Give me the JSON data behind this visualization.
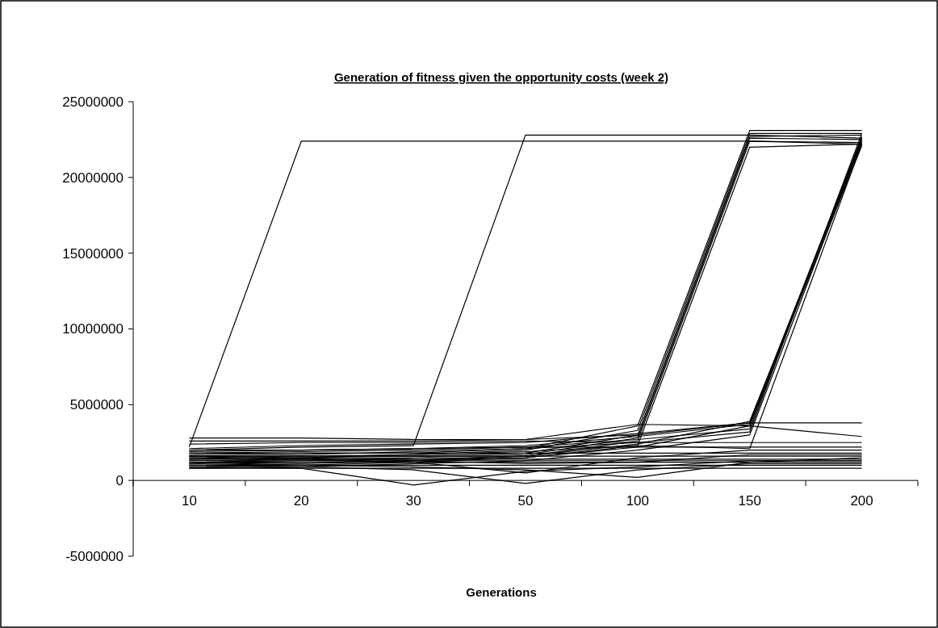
{
  "chart_data": {
    "type": "line",
    "title": "Generation of fitness given the opportunity costs (week 2)",
    "xlabel": "Generations",
    "categories": [
      "10",
      "20",
      "30",
      "50",
      "100",
      "150",
      "200"
    ],
    "ylim": [
      -5000000,
      25000000
    ],
    "yticks": [
      -5000000,
      0,
      5000000,
      10000000,
      15000000,
      20000000,
      25000000
    ],
    "grid": false,
    "marker": "none",
    "line_style": "solid",
    "series": [
      {
        "color": "#000000",
        "values": [
          2200000,
          22400000,
          22400000,
          22400000,
          22400000,
          22400000,
          22200000
        ]
      },
      {
        "color": "#000000",
        "values": [
          2000000,
          2200000,
          2300000,
          22800000,
          22800000,
          22800000,
          22600000
        ]
      },
      {
        "color": "#000000",
        "values": [
          1600000,
          1700000,
          1900000,
          2100000,
          3600000,
          23100000,
          23100000
        ]
      },
      {
        "color": "#000000",
        "values": [
          1500000,
          1600000,
          1700000,
          2000000,
          3300000,
          22900000,
          22900000
        ]
      },
      {
        "color": "#000000",
        "values": [
          1400000,
          1500000,
          1600000,
          1800000,
          3000000,
          22700000,
          22800000
        ]
      },
      {
        "color": "#000000",
        "values": [
          1300000,
          1400000,
          1500000,
          1700000,
          2800000,
          22600000,
          22500000
        ]
      },
      {
        "color": "#000000",
        "values": [
          1200000,
          1300000,
          1400000,
          1600000,
          2600000,
          22400000,
          22300000
        ]
      },
      {
        "color": "#000000",
        "values": [
          1100000,
          1200000,
          1300000,
          1500000,
          2300000,
          22000000,
          22200000
        ]
      },
      {
        "color": "#000000",
        "values": [
          1000000,
          1100000,
          1300000,
          1600000,
          2400000,
          3900000,
          22300000
        ]
      },
      {
        "color": "#000000",
        "values": [
          900000,
          1000000,
          1200000,
          1500000,
          2200000,
          3600000,
          22500000
        ]
      },
      {
        "color": "#000000",
        "values": [
          1800000,
          1900000,
          2000000,
          2200000,
          2700000,
          3400000,
          22700000
        ]
      },
      {
        "color": "#000000",
        "values": [
          1700000,
          1800000,
          1800000,
          2100000,
          2500000,
          3200000,
          22900000
        ]
      },
      {
        "color": "#000000",
        "values": [
          1900000,
          2000000,
          2100000,
          2300000,
          2900000,
          3700000,
          22100000
        ]
      },
      {
        "color": "#000000",
        "values": [
          800000,
          900000,
          1100000,
          1300000,
          2000000,
          3000000,
          22400000
        ]
      },
      {
        "color": "#000000",
        "values": [
          2100000,
          2300000,
          2400000,
          2500000,
          3100000,
          3800000,
          22600000
        ]
      },
      {
        "color": "#000000",
        "values": [
          1600000,
          1500000,
          1700000,
          1900000,
          2300000,
          2100000,
          22200000
        ]
      },
      {
        "color": "#000000",
        "values": [
          2800000,
          2800000,
          2700000,
          2700000,
          3000000,
          3800000,
          3800000
        ]
      },
      {
        "color": "#000000",
        "values": [
          2600000,
          2600000,
          2600000,
          2700000,
          3700000,
          3600000,
          2900000
        ]
      },
      {
        "color": "#000000",
        "values": [
          2400000,
          2500000,
          2500000,
          2600000,
          2500000,
          2500000,
          2500000
        ]
      },
      {
        "color": "#000000",
        "values": [
          2000000,
          2000000,
          2100000,
          2200000,
          2200000,
          2200000,
          2200000
        ]
      },
      {
        "color": "#000000",
        "values": [
          1800000,
          1800000,
          1800000,
          1800000,
          1800000,
          1800000,
          1800000
        ]
      },
      {
        "color": "#000000",
        "values": [
          1600000,
          1600000,
          1600000,
          1600000,
          1600000,
          1600000,
          1600000
        ]
      },
      {
        "color": "#000000",
        "values": [
          1400000,
          1400000,
          1400000,
          1400000,
          1400000,
          1400000,
          1400000
        ]
      },
      {
        "color": "#000000",
        "values": [
          1200000,
          1200000,
          1200000,
          1200000,
          1200000,
          1200000,
          1200000
        ]
      },
      {
        "color": "#000000",
        "values": [
          1000000,
          1000000,
          1000000,
          1000000,
          1000000,
          1000000,
          1000000
        ]
      },
      {
        "color": "#000000",
        "values": [
          800000,
          800000,
          800000,
          800000,
          800000,
          800000,
          800000
        ]
      },
      {
        "color": "#000000",
        "values": [
          1300000,
          1300000,
          1300000,
          1300000,
          1300000,
          1300000,
          1300000
        ]
      },
      {
        "color": "#000000",
        "values": [
          1100000,
          1500000,
          1300000,
          1100000,
          1200000,
          1700000,
          1700000
        ]
      },
      {
        "color": "#000000",
        "values": [
          900000,
          800000,
          -300000,
          600000,
          900000,
          1300000,
          1300000
        ]
      },
      {
        "color": "#000000",
        "values": [
          1000000,
          900000,
          700000,
          -200000,
          700000,
          1100000,
          1100000
        ]
      },
      {
        "color": "#000000",
        "values": [
          1200000,
          1000000,
          900000,
          700000,
          200000,
          1200000,
          1500000
        ]
      },
      {
        "color": "#000000",
        "values": [
          1500000,
          1400000,
          1200000,
          500000,
          1500000,
          2000000,
          2000000
        ]
      }
    ]
  }
}
